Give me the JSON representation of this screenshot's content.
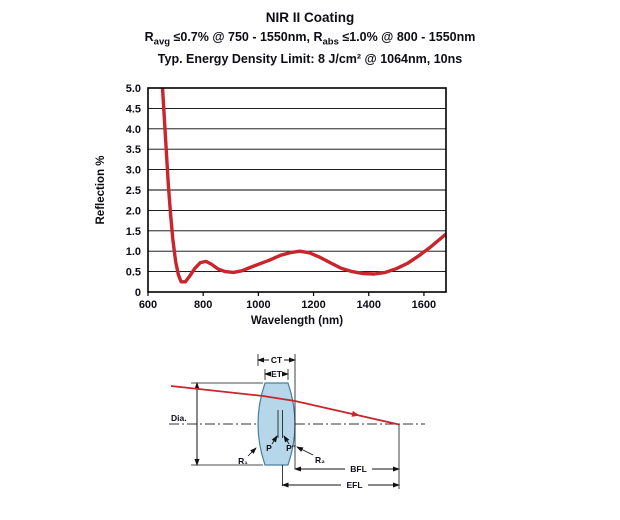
{
  "header": {
    "title": "NIR II Coating",
    "spec1": {
      "p1": "R",
      "s1": "avg",
      "p2": " ≤0.7% @ 750 - 1550nm, R",
      "s2": "abs",
      "p3": " ≤1.0% @ 800 - 1550nm"
    },
    "spec2": "Typ. Energy Density Limit: 8 J/cm² @ 1064nm, 10ns"
  },
  "chart_data": {
    "type": "line",
    "title": "NIR II Coating",
    "xlabel": "Wavelength (nm)",
    "ylabel": "Reflection %",
    "xlim": [
      600,
      1680
    ],
    "ylim": [
      0,
      5
    ],
    "grid": "horizontal",
    "legend": "none",
    "xticks": [
      600,
      800,
      1000,
      1200,
      1400,
      1600
    ],
    "xtick_labels": [
      "600",
      "800",
      "1000",
      "1200",
      "1400",
      "1600"
    ],
    "yticks": [
      0,
      0.5,
      1,
      1.5,
      2,
      2.5,
      3,
      3.5,
      4,
      4.5,
      5
    ],
    "ytick_labels": [
      "0",
      "0.5",
      "1.0",
      "1.5",
      "2.0",
      "2.5",
      "3.0",
      "3.5",
      "4.0",
      "4.5",
      "5.0"
    ],
    "series": [
      {
        "name": "Reflection %",
        "color": "#c8252c",
        "x": [
          642,
          650,
          658,
          666,
          674,
          682,
          690,
          700,
          710,
          720,
          735,
          750,
          770,
          790,
          810,
          830,
          855,
          880,
          910,
          940,
          970,
          1000,
          1040,
          1080,
          1120,
          1150,
          1185,
          1220,
          1260,
          1300,
          1340,
          1380,
          1420,
          1460,
          1500,
          1540,
          1580,
          1620,
          1655,
          1680
        ],
        "y": [
          6.0,
          5.3,
          4.4,
          3.5,
          2.6,
          1.9,
          1.3,
          0.75,
          0.42,
          0.25,
          0.25,
          0.38,
          0.58,
          0.72,
          0.75,
          0.68,
          0.56,
          0.5,
          0.48,
          0.52,
          0.6,
          0.68,
          0.78,
          0.9,
          0.97,
          1.0,
          0.96,
          0.86,
          0.72,
          0.58,
          0.5,
          0.45,
          0.44,
          0.48,
          0.57,
          0.7,
          0.88,
          1.08,
          1.28,
          1.42
        ]
      }
    ]
  },
  "diagram": {
    "lens_fill": "#b5d7e9",
    "lens_stroke": "#4a7fa0",
    "ray_color": "#c8252c",
    "labels": {
      "ct": "CT",
      "et": "ET",
      "dia": "Dia.",
      "r1": "R₁",
      "r2": "R₂",
      "p": "P",
      "p_doubleprime": "P″",
      "bfl": "BFL",
      "efl": "EFL"
    }
  }
}
